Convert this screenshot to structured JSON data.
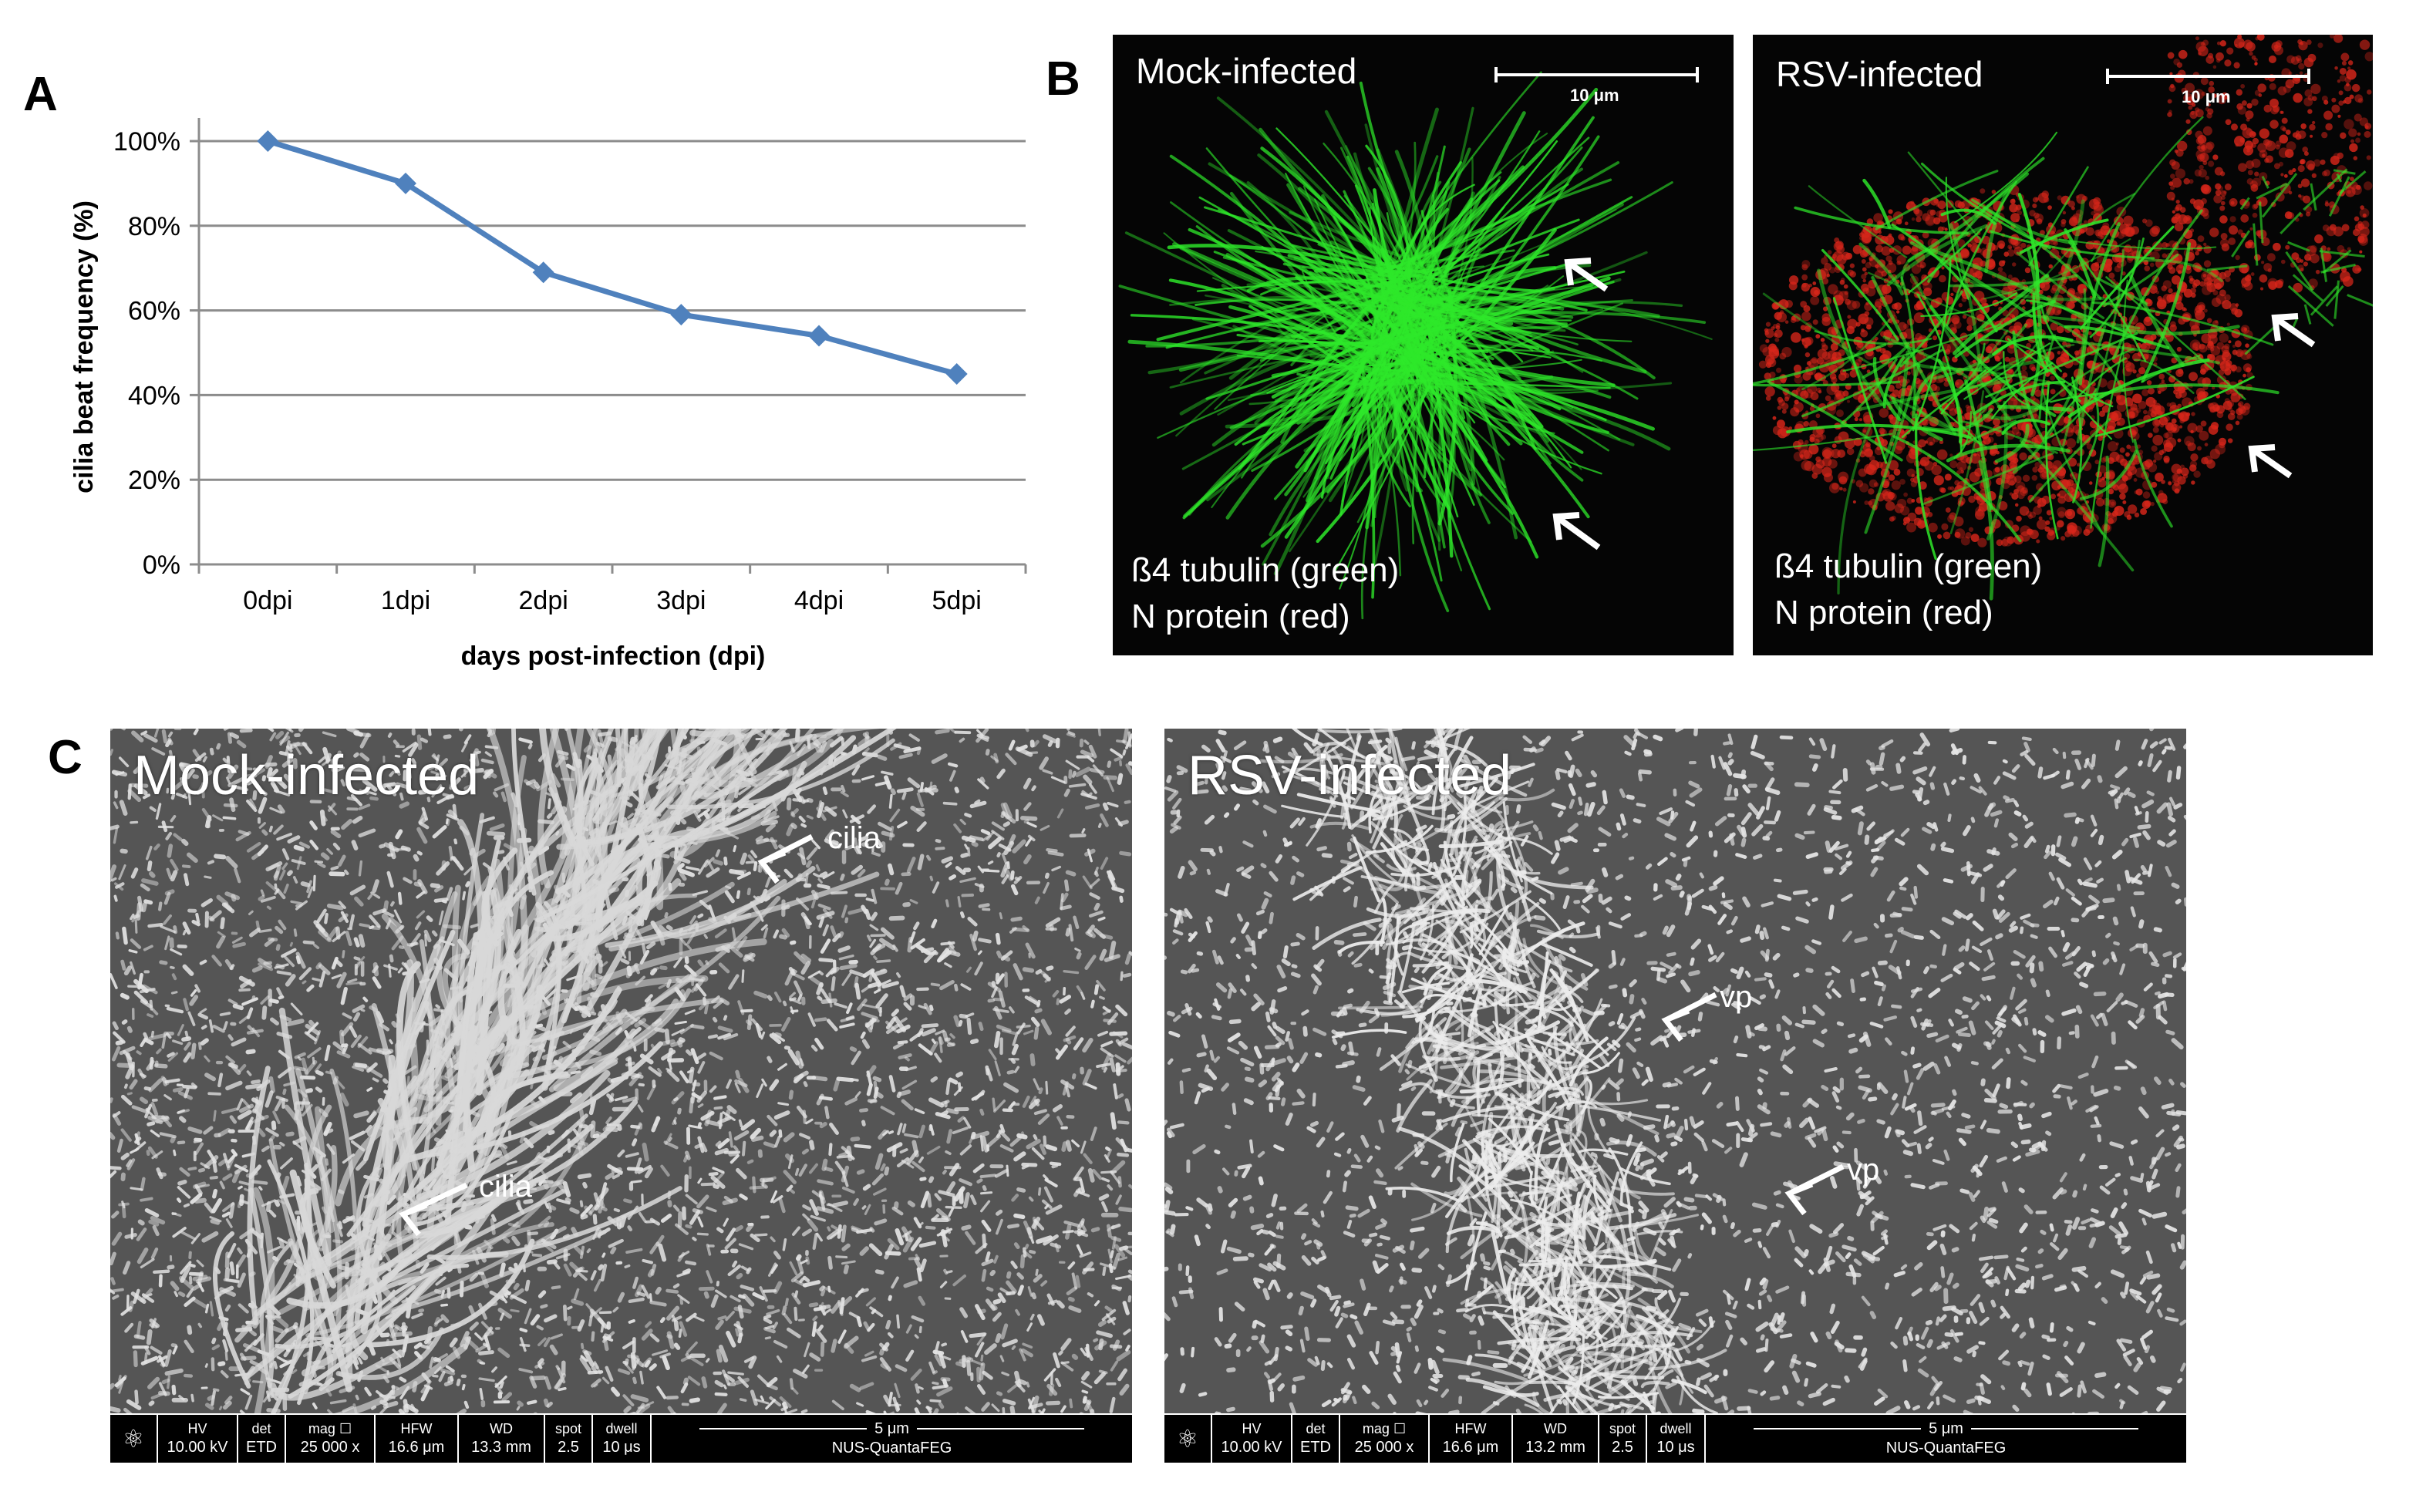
{
  "panels": {
    "a_label": "A",
    "b_label": "B",
    "c_label": "C"
  },
  "chart_data": {
    "type": "line",
    "categories": [
      "0dpi",
      "1dpi",
      "2dpi",
      "3dpi",
      "4dpi",
      "5dpi"
    ],
    "values": [
      100,
      90,
      69,
      59,
      54,
      45
    ],
    "ylim": [
      0,
      100
    ],
    "yticks": [
      0,
      20,
      40,
      60,
      80,
      100
    ],
    "ytick_labels": [
      "0%",
      "20%",
      "40%",
      "60%",
      "80%",
      "100%"
    ],
    "xlabel": "days post-infection (dpi)",
    "ylabel": "cilia beat frequency (%)",
    "grid": true,
    "line_color": "#4f81bd",
    "marker": "diamond"
  },
  "fluorescence": {
    "mock": {
      "title": "Mock-infected",
      "scalebar": "10 μm",
      "stain_line1": "ß4 tubulin (green)",
      "stain_line2": "N protein (red)"
    },
    "rsv": {
      "title": "RSV-infected",
      "scalebar": "10 μm",
      "stain_line1": "ß4 tubulin (green)",
      "stain_line2": "N protein (red)"
    },
    "colors": {
      "tubulin": "#2ee82a",
      "n_protein": "#d8261a",
      "background": "#050505"
    }
  },
  "sem": {
    "mock": {
      "title": "Mock-infected",
      "annotations": [
        "cilia",
        "cilia"
      ],
      "info": {
        "hv_h": "HV",
        "hv_v": "10.00 kV",
        "det_h": "det",
        "det_v": "ETD",
        "mag_h": "mag ☐",
        "mag_v": "25 000 x",
        "hfw_h": "HFW",
        "hfw_v": "16.6 μm",
        "wd_h": "WD",
        "wd_v": "13.3 mm",
        "spot_h": "spot",
        "spot_v": "2.5",
        "dwell_h": "dwell",
        "dwell_v": "10 μs",
        "scale": "5 μm",
        "instrument": "NUS-QuantaFEG"
      }
    },
    "rsv": {
      "title": "RSV-infected",
      "annotations": [
        "vp",
        "vp"
      ],
      "info": {
        "hv_h": "HV",
        "hv_v": "10.00 kV",
        "det_h": "det",
        "det_v": "ETD",
        "mag_h": "mag ☐",
        "mag_v": "25 000 x",
        "hfw_h": "HFW",
        "hfw_v": "16.6 μm",
        "wd_h": "WD",
        "wd_v": "13.2 mm",
        "spot_h": "spot",
        "spot_v": "2.5",
        "dwell_h": "dwell",
        "dwell_v": "10 μs",
        "scale": "5 μm",
        "instrument": "NUS-QuantaFEG"
      }
    }
  }
}
